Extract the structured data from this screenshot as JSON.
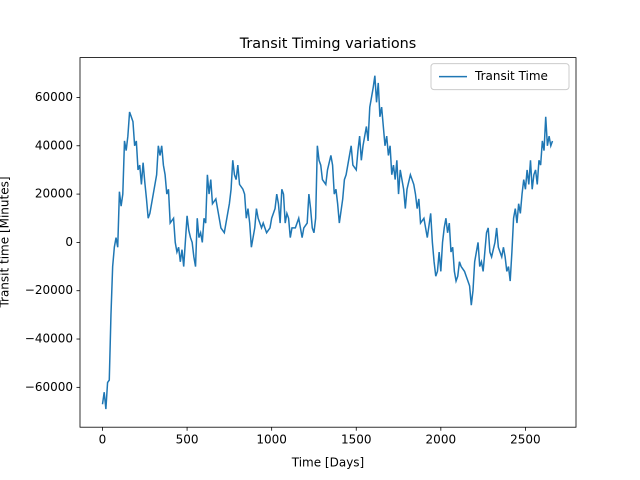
{
  "chart_data": {
    "type": "line",
    "title": "Transit Timing variations",
    "x_label": "Time [Days]",
    "y_label": "Transit time [Minutes]",
    "x": [
      0,
      10,
      20,
      30,
      40,
      50,
      60,
      70,
      80,
      90,
      100,
      110,
      120,
      130,
      140,
      150,
      160,
      170,
      180,
      190,
      200,
      210,
      220,
      230,
      240,
      250,
      260,
      270,
      280,
      300,
      320,
      330,
      340,
      350,
      360,
      370,
      380,
      390,
      400,
      420,
      430,
      440,
      450,
      460,
      470,
      480,
      500,
      510,
      520,
      530,
      540,
      550,
      560,
      570,
      580,
      590,
      600,
      610,
      620,
      630,
      640,
      650,
      670,
      690,
      700,
      720,
      740,
      750,
      760,
      770,
      780,
      790,
      800,
      810,
      830,
      840,
      850,
      860,
      870,
      880,
      900,
      910,
      920,
      940,
      950,
      970,
      990,
      1000,
      1020,
      1030,
      1040,
      1050,
      1060,
      1070,
      1080,
      1090,
      1100,
      1110,
      1120,
      1140,
      1160,
      1180,
      1190,
      1210,
      1220,
      1230,
      1240,
      1250,
      1260,
      1270,
      1280,
      1290,
      1300,
      1320,
      1330,
      1350,
      1360,
      1370,
      1380,
      1390,
      1400,
      1420,
      1430,
      1440,
      1460,
      1470,
      1480,
      1500,
      1510,
      1520,
      1530,
      1540,
      1560,
      1570,
      1580,
      1590,
      1600,
      1610,
      1620,
      1630,
      1640,
      1650,
      1660,
      1670,
      1680,
      1690,
      1700,
      1710,
      1720,
      1730,
      1740,
      1750,
      1760,
      1780,
      1790,
      1800,
      1820,
      1840,
      1850,
      1860,
      1870,
      1880,
      1900,
      1920,
      1940,
      1950,
      1960,
      1970,
      1980,
      1990,
      2000,
      2010,
      2020,
      2030,
      2040,
      2050,
      2060,
      2070,
      2080,
      2090,
      2100,
      2110,
      2120,
      2140,
      2150,
      2160,
      2170,
      2180,
      2190,
      2200,
      2210,
      2220,
      2230,
      2240,
      2250,
      2260,
      2270,
      2280,
      2290,
      2300,
      2320,
      2330,
      2340,
      2350,
      2360,
      2370,
      2380,
      2390,
      2400,
      2410,
      2420,
      2430,
      2440,
      2450,
      2460,
      2470,
      2480,
      2490,
      2500,
      2510,
      2520,
      2530,
      2540,
      2550,
      2560,
      2570,
      2580,
      2590,
      2600,
      2610,
      2620,
      2630,
      2640,
      2650,
      2660
    ],
    "series": [
      {
        "name": "Transit Time",
        "color": "#1f77b4",
        "values": [
          -67000,
          -62000,
          -69000,
          -58000,
          -57000,
          -30000,
          -10000,
          -2000,
          2000,
          -2000,
          21000,
          15000,
          20000,
          42000,
          38000,
          44000,
          54000,
          52000,
          50000,
          40000,
          42000,
          30000,
          32000,
          24000,
          33000,
          25000,
          18000,
          10000,
          12000,
          20000,
          28000,
          40000,
          36000,
          40000,
          32000,
          28000,
          20000,
          22000,
          8000,
          10000,
          0,
          -4000,
          -2000,
          -8000,
          -3000,
          -10000,
          11000,
          5000,
          2000,
          0,
          -6000,
          -10000,
          10000,
          2000,
          4000,
          0,
          10000,
          8000,
          28000,
          20000,
          26000,
          16000,
          18000,
          10000,
          6000,
          4000,
          12000,
          16000,
          22000,
          34000,
          28000,
          26000,
          32000,
          24000,
          22000,
          20000,
          10000,
          14000,
          8000,
          -2000,
          6000,
          14000,
          10000,
          6000,
          8000,
          4000,
          6000,
          10000,
          14000,
          20000,
          16000,
          8000,
          22000,
          20000,
          8000,
          12000,
          10000,
          2000,
          6000,
          6000,
          10000,
          2000,
          6000,
          8000,
          20000,
          14000,
          6000,
          4000,
          10000,
          40000,
          34000,
          32000,
          26000,
          24000,
          30000,
          36000,
          32000,
          20000,
          22000,
          16000,
          8000,
          18000,
          26000,
          28000,
          36000,
          40000,
          32000,
          30000,
          38000,
          44000,
          34000,
          40000,
          48000,
          42000,
          56000,
          60000,
          64000,
          69000,
          58000,
          66000,
          52000,
          56000,
          48000,
          40000,
          44000,
          36000,
          40000,
          28000,
          32000,
          26000,
          34000,
          20000,
          30000,
          22000,
          14000,
          22000,
          28000,
          24000,
          20000,
          14000,
          18000,
          8000,
          10000,
          2000,
          12000,
          0,
          -8000,
          -14000,
          -12000,
          -4000,
          -12000,
          0,
          6000,
          10000,
          4000,
          8000,
          -4000,
          -2000,
          -12000,
          -16000,
          -14000,
          -8000,
          -10000,
          -12000,
          -14000,
          -16000,
          -18000,
          -26000,
          -20000,
          -8000,
          -4000,
          0,
          -10000,
          -8000,
          -12000,
          -4000,
          4000,
          6000,
          -4000,
          -6000,
          0,
          6000,
          -2000,
          -4000,
          -6000,
          -2000,
          -6000,
          -12000,
          -10000,
          -16000,
          -4000,
          10000,
          14000,
          8000,
          16000,
          12000,
          20000,
          26000,
          22000,
          30000,
          24000,
          34000,
          22000,
          28000,
          30000,
          24000,
          34000,
          32000,
          42000,
          38000,
          52000,
          40000,
          44000,
          40000,
          42000
        ]
      }
    ],
    "xlim": [
      -133,
      2799
    ],
    "ylim": [
      -76500,
      76500
    ],
    "xticks": [
      0,
      500,
      1000,
      1500,
      2000,
      2500
    ],
    "yticks": [
      {
        "value": -60000,
        "label": "−60000"
      },
      {
        "value": -40000,
        "label": "−40000"
      },
      {
        "value": -20000,
        "label": "−20000"
      },
      0,
      20000,
      40000,
      60000
    ],
    "grid": false,
    "legend": "upper right"
  }
}
